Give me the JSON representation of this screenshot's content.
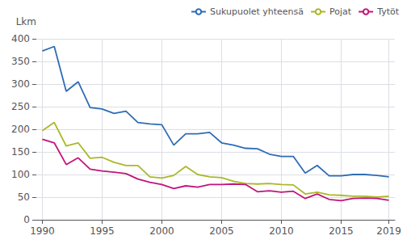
{
  "chart_data": {
    "type": "line",
    "ylabel": "Lkm",
    "x": [
      1990,
      1991,
      1992,
      1993,
      1994,
      1995,
      1996,
      1997,
      1998,
      1999,
      2000,
      2001,
      2002,
      2003,
      2004,
      2005,
      2006,
      2007,
      2008,
      2009,
      2010,
      2011,
      2012,
      2013,
      2014,
      2015,
      2016,
      2017,
      2018,
      2019
    ],
    "series": [
      {
        "name": "Sukupuolet yhteensä",
        "color": "#2e6db4",
        "values": [
          373,
          383,
          284,
          305,
          248,
          245,
          235,
          240,
          215,
          212,
          210,
          165,
          190,
          190,
          193,
          170,
          165,
          158,
          157,
          145,
          140,
          140,
          103,
          120,
          97,
          97,
          100,
          100,
          98,
          95
        ]
      },
      {
        "name": "Pojat",
        "color": "#aab828",
        "values": [
          197,
          215,
          163,
          170,
          136,
          138,
          127,
          120,
          120,
          95,
          92,
          98,
          118,
          100,
          95,
          93,
          85,
          80,
          79,
          80,
          78,
          77,
          57,
          61,
          55,
          54,
          52,
          52,
          50,
          52
        ]
      },
      {
        "name": "Tytöt",
        "color": "#c0157a",
        "values": [
          178,
          170,
          122,
          137,
          112,
          108,
          105,
          102,
          90,
          83,
          78,
          69,
          75,
          72,
          78,
          78,
          79,
          78,
          62,
          64,
          61,
          63,
          47,
          57,
          45,
          42,
          47,
          48,
          47,
          43
        ]
      }
    ],
    "xlim": [
      1989.5,
      2019.5
    ],
    "xticks": [
      1990,
      1995,
      2000,
      2005,
      2010,
      2015,
      2019
    ],
    "ylim": [
      0,
      400
    ],
    "yticks": [
      0,
      50,
      100,
      150,
      200,
      250,
      300,
      350,
      400
    ],
    "grid": true,
    "legend": "upper right"
  }
}
